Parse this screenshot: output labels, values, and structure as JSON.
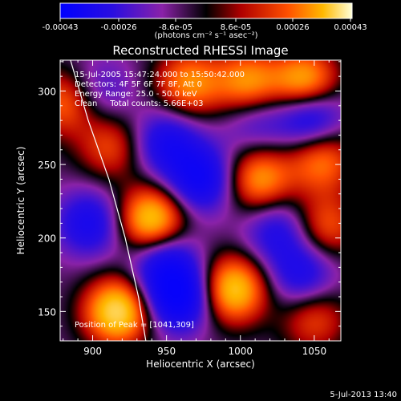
{
  "chart_data": {
    "type": "heatmap",
    "title": "Reconstructed RHESSI Image",
    "xlabel": "Heliocentric X (arcsec)",
    "ylabel": "Heliocentric Y (arcsec)",
    "xlim": [
      878,
      1068
    ],
    "ylim": [
      130,
      321
    ],
    "x_ticks": [
      900,
      950,
      1000,
      1050
    ],
    "y_ticks": [
      150,
      200,
      250,
      300
    ],
    "colorbar": {
      "ticks": [
        "-0.00043",
        "-0.00026",
        "-8.6e-05",
        "8.6e-05",
        "0.00026",
        "0.00043"
      ],
      "unit_label": "(photons cm⁻² s⁻¹ asec⁻²)",
      "range": [
        -0.00043,
        0.00043
      ]
    },
    "annotations": [
      "15-Jul-2005 15:47:24.000 to 15:50:42.000",
      "Detectors: 4F 5F 6F 7F 8F, Att 0",
      "Energy Range: 25.0 - 50.0 keV",
      "Clean     Total counts: 5.66E+03",
      "Position of Peak = [1041,309]"
    ],
    "footer": "5-Jul-2013 13:40",
    "peak": [
      1041,
      309
    ],
    "sources": [
      {
        "x": 881,
        "y": 292,
        "v": 0.55
      },
      {
        "x": 917,
        "y": 150,
        "v": 1.0
      },
      {
        "x": 940,
        "y": 212,
        "v": 0.95
      },
      {
        "x": 965,
        "y": 305,
        "v": 0.65
      },
      {
        "x": 1005,
        "y": 305,
        "v": 0.7
      },
      {
        "x": 1044,
        "y": 304,
        "v": 0.95
      },
      {
        "x": 1013,
        "y": 240,
        "v": 0.7
      },
      {
        "x": 1055,
        "y": 253,
        "v": 0.6
      },
      {
        "x": 995,
        "y": 165,
        "v": 0.9
      },
      {
        "x": 1050,
        "y": 145,
        "v": 0.45
      },
      {
        "x": 1058,
        "y": 208,
        "v": 0.5
      },
      {
        "x": 912,
        "y": 262,
        "v": 0.45
      },
      {
        "x": 905,
        "y": 300,
        "v": -0.3
      },
      {
        "x": 948,
        "y": 185,
        "v": -0.55
      },
      {
        "x": 950,
        "y": 265,
        "v": -0.55
      },
      {
        "x": 958,
        "y": 160,
        "v": -0.9
      },
      {
        "x": 973,
        "y": 240,
        "v": -0.7
      },
      {
        "x": 1047,
        "y": 285,
        "v": -0.8
      },
      {
        "x": 1042,
        "y": 175,
        "v": -0.5
      },
      {
        "x": 898,
        "y": 210,
        "v": -0.55
      },
      {
        "x": 1025,
        "y": 205,
        "v": -0.45
      },
      {
        "x": 1010,
        "y": 280,
        "v": -0.35
      }
    ]
  }
}
